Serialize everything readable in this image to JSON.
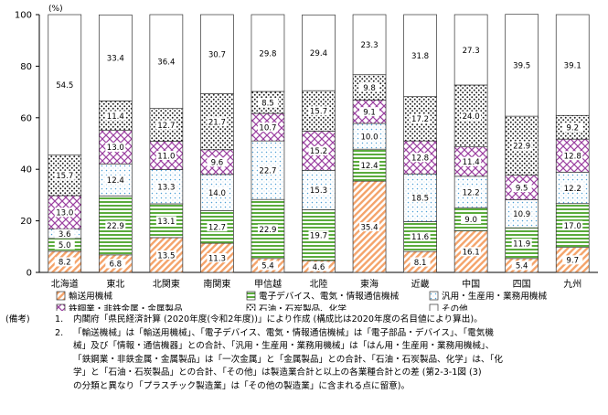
{
  "chart_data": {
    "type": "bar",
    "stacked": true,
    "unit_label": "(%)",
    "ylim": [
      0,
      100
    ],
    "yticks": [
      0,
      20,
      40,
      60,
      80,
      100
    ],
    "grid": false,
    "legend_position": "bottom",
    "categories": [
      "北海道",
      "東北",
      "北関東",
      "南関東",
      "甲信越",
      "北陸",
      "東海",
      "近畿",
      "中国",
      "四国",
      "九州"
    ],
    "series": [
      {
        "name": "輸送用機械",
        "color": "#f4a36a",
        "pattern": "diag-hatch",
        "values": [
          8.2,
          6.8,
          13.5,
          11.3,
          5.4,
          4.6,
          35.4,
          8.1,
          16.1,
          5.4,
          9.7
        ]
      },
      {
        "name": "電子デバイス、電気・情報通信機械",
        "color": "#5aab3c",
        "pattern": "horizontal-stripes",
        "values": [
          5.0,
          22.9,
          13.1,
          12.7,
          22.9,
          19.7,
          12.4,
          11.6,
          9.0,
          11.9,
          17.0
        ]
      },
      {
        "name": "汎用・生産用・業務用機械",
        "color": "#4d9fd6",
        "pattern": "light-dots",
        "values": [
          3.6,
          12.4,
          13.3,
          14.0,
          22.7,
          15.3,
          10.0,
          18.5,
          12.2,
          10.9,
          12.2
        ]
      },
      {
        "name": "鉄鋼業・非鉄金属・金属製品",
        "color": "#9b3fa0",
        "pattern": "crosshatch",
        "values": [
          13.0,
          13.0,
          11.0,
          9.6,
          10.7,
          15.2,
          9.1,
          12.8,
          11.4,
          9.5,
          12.8
        ]
      },
      {
        "name": "石油・石炭製品、化学",
        "color": "#222222",
        "pattern": "dense-dots",
        "values": [
          15.7,
          11.4,
          12.7,
          21.7,
          8.5,
          15.7,
          9.8,
          17.2,
          24.0,
          22.9,
          9.2
        ]
      },
      {
        "name": "その他",
        "color": "#ffffff",
        "pattern": "none",
        "values": [
          54.5,
          33.4,
          36.4,
          30.7,
          29.8,
          29.4,
          23.3,
          31.8,
          27.3,
          39.5,
          39.1
        ]
      }
    ]
  },
  "notes": {
    "tag": "(備考)",
    "items": [
      {
        "num": "1.",
        "lines": [
          "内閣府「県民経済計算 (2020年度(令和2年度))」により作成 (構成比は2020年度の名目値により算出)。"
        ]
      },
      {
        "num": "2.",
        "lines": [
          "「輸送機械」は「輸送用機械」、「電子デバイス、電気・情報通信機械」は「電子部品・デバイス」、「電気機",
          "械」及び「情報・通信機器」との合計、「汎用・生産用・業務用機械」は「はん用・生産用・業務用機械」、",
          "「鉄鋼業・非鉄金属・金属製品」は「一次金属」と「金属製品」との合計、「石油・石炭製品、化学」は、「化",
          "学」と「石油・石炭製品」との合計、「その他」は製造業合計と以上の各業種合計との差 (第2-3-1図 (3)",
          "の分類と異なり「プラスチック製造業」は「その他の製造業」に含まれる点に留意)。"
        ]
      }
    ]
  }
}
